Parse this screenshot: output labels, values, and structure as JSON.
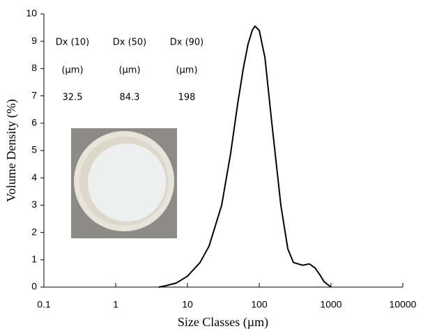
{
  "chart_data": {
    "type": "line",
    "xlabel": "Size Classes (µm)",
    "ylabel": "Volume Density (%)",
    "xscale": "log",
    "xlim": [
      0.1,
      10000
    ],
    "xticks": [
      0.1,
      1,
      10,
      100,
      1000,
      10000
    ],
    "ylim": [
      0,
      10
    ],
    "yticks": [
      0,
      1,
      2,
      3,
      4,
      5,
      6,
      7,
      8,
      9,
      10
    ],
    "series": [
      {
        "color": "#000000",
        "x": [
          4,
          5,
          7,
          10,
          15,
          20,
          30,
          40,
          50,
          60,
          70,
          80,
          87,
          100,
          120,
          150,
          200,
          250,
          300,
          400,
          500,
          600,
          700,
          800,
          1000
        ],
        "values": [
          0,
          0.05,
          0.15,
          0.4,
          0.9,
          1.5,
          3.0,
          4.9,
          6.7,
          8.0,
          8.9,
          9.4,
          9.55,
          9.4,
          8.4,
          6.0,
          3.0,
          1.4,
          0.9,
          0.8,
          0.85,
          0.7,
          0.45,
          0.2,
          0
        ]
      }
    ],
    "dx_table": {
      "headers": [
        "Dx (10)",
        "Dx (50)",
        "Dx (90)"
      ],
      "units": [
        "(µm)",
        "(µm)",
        "(µm)"
      ],
      "values": [
        32.5,
        84.3,
        198
      ]
    }
  }
}
